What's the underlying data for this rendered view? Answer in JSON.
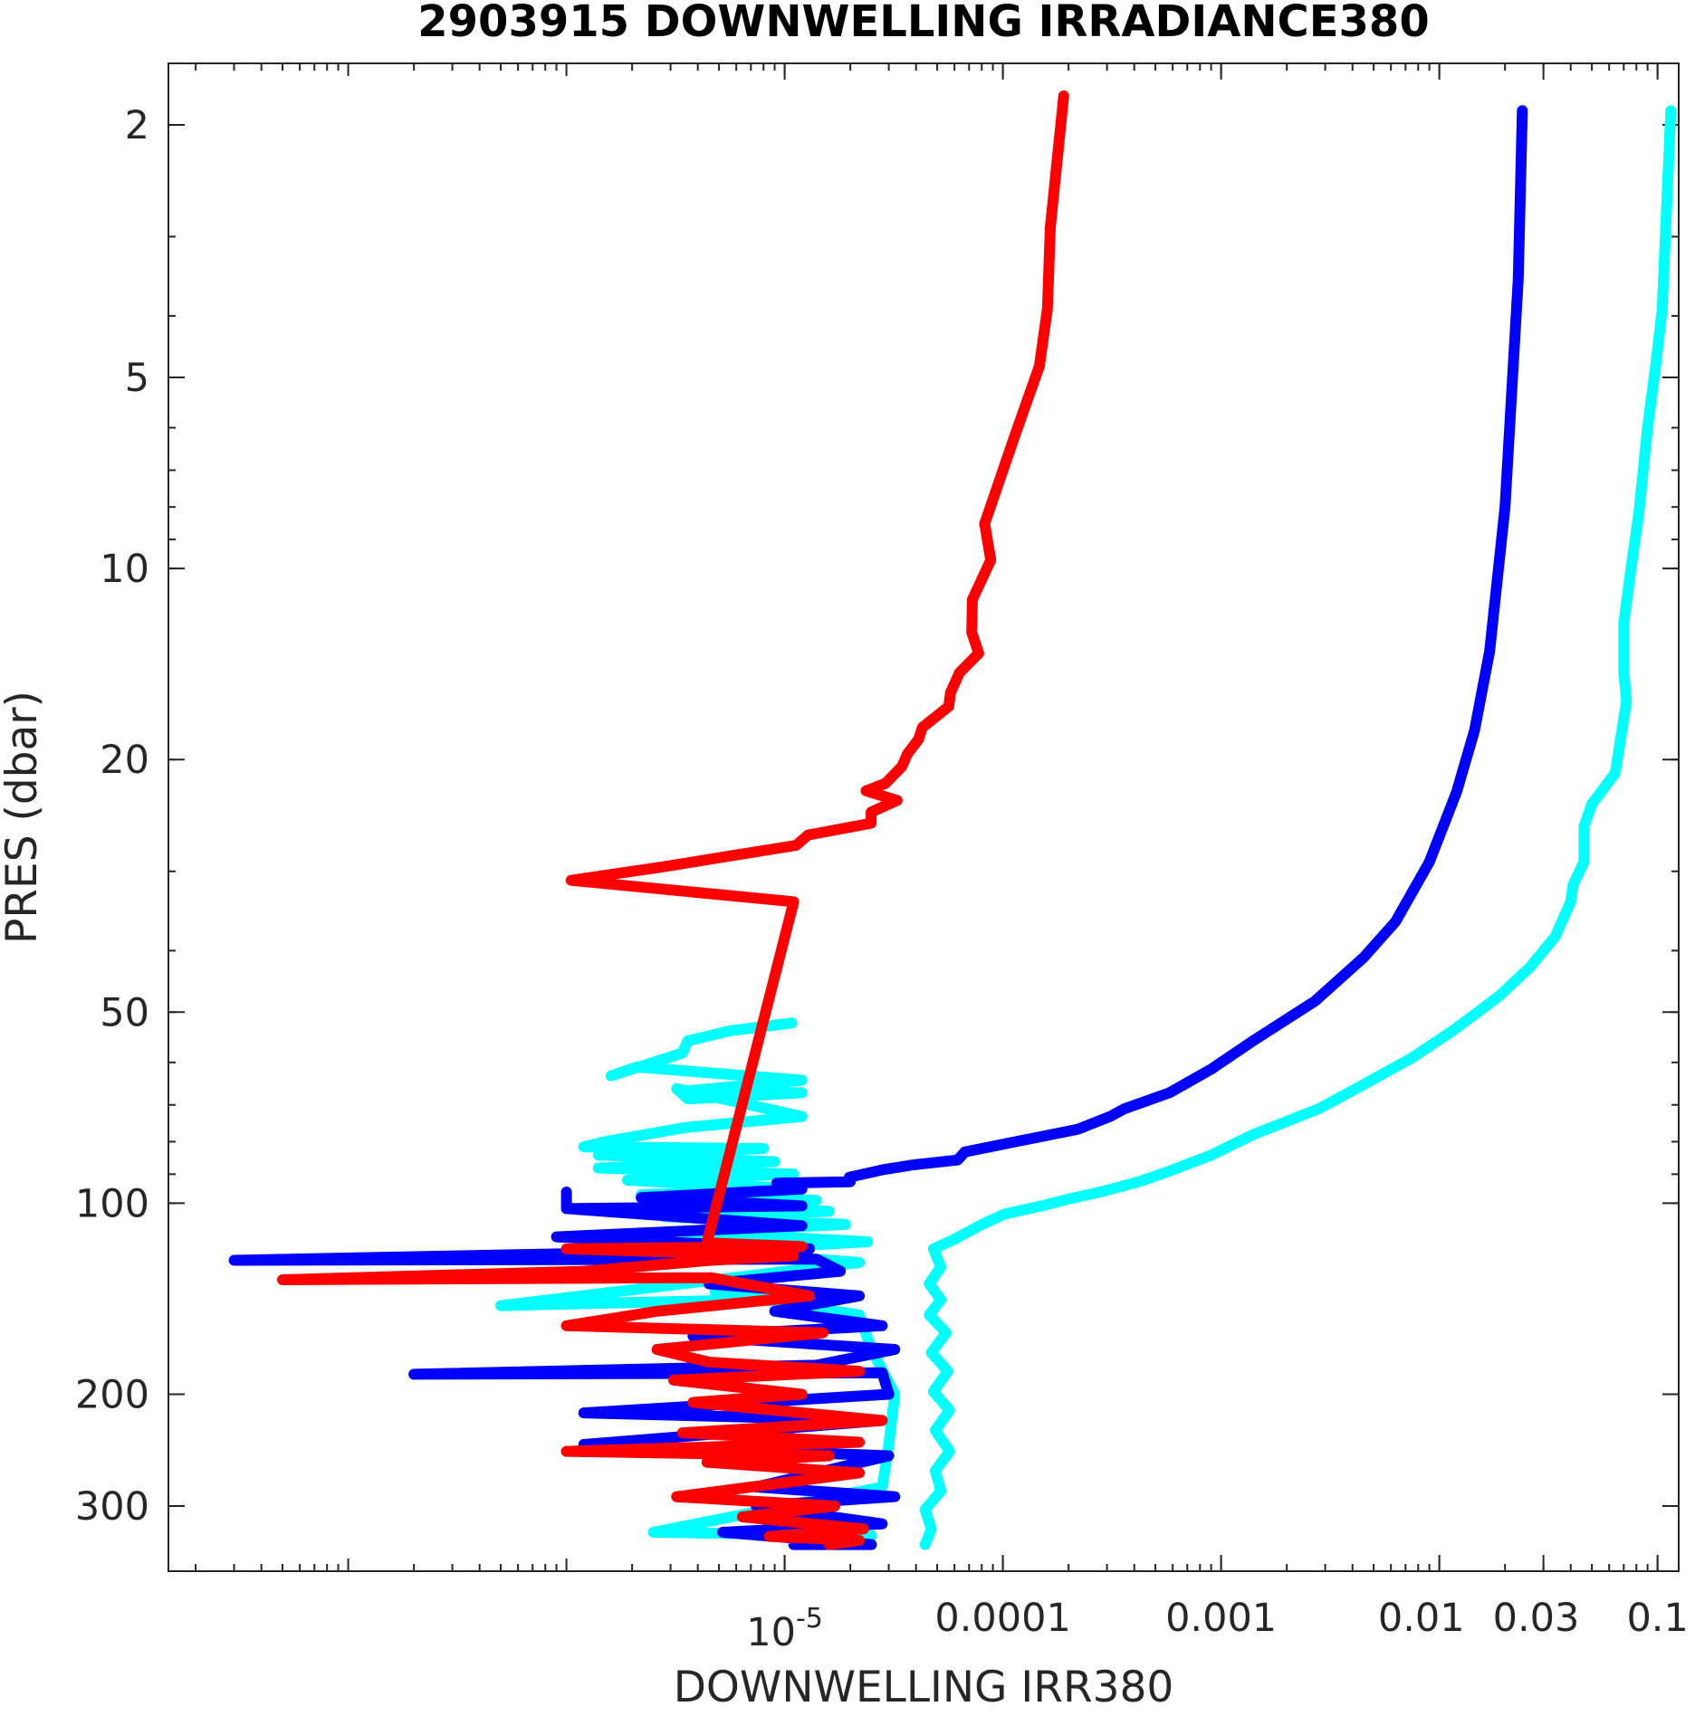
{
  "chart_data": {
    "type": "line",
    "title": "2903915  DOWNWELLING IRRADIANCE380",
    "xlabel": "DOWNWELLING IRR380",
    "ylabel": "PRES (dbar)",
    "x_scale": "log",
    "y_scale": "log",
    "y_reversed": true,
    "xlim": [
      1.5e-08,
      0.125
    ],
    "ylim": [
      1.6,
      380
    ],
    "x_ticks": [
      {
        "value": 1e-05,
        "label": "10",
        "exponent": "-5"
      },
      {
        "value": 0.0001,
        "label": "0.0001"
      },
      {
        "value": 0.001,
        "label": "0.001"
      },
      {
        "value": 0.01,
        "label": "0.01"
      },
      {
        "value": 0.03,
        "label": "0.03"
      },
      {
        "value": 0.1,
        "label": "0.1"
      }
    ],
    "y_ticks": [
      {
        "value": 2,
        "label": "2"
      },
      {
        "value": 5,
        "label": "5"
      },
      {
        "value": 10,
        "label": "10"
      },
      {
        "value": 20,
        "label": "20"
      },
      {
        "value": 50,
        "label": "50"
      },
      {
        "value": 100,
        "label": "100"
      },
      {
        "value": 200,
        "label": "200"
      },
      {
        "value": 300,
        "label": "300"
      }
    ],
    "grid": false,
    "legend": "none",
    "series": [
      {
        "color": "#00ffff",
        "points": [
          [
            0.115,
            1.9
          ],
          [
            0.105,
            3.9
          ],
          [
            0.098,
            4.8
          ],
          [
            0.09,
            6.0
          ],
          [
            0.082,
            8.2
          ],
          [
            0.075,
            10.2
          ],
          [
            0.07,
            12.2
          ],
          [
            0.07,
            14.5
          ],
          [
            0.072,
            16.2
          ],
          [
            0.064,
            21.0
          ],
          [
            0.05,
            23.5
          ],
          [
            0.046,
            25.5
          ],
          [
            0.046,
            29.0
          ],
          [
            0.041,
            31.5
          ],
          [
            0.04,
            33.5
          ],
          [
            0.034,
            38.0
          ],
          [
            0.026,
            42.5
          ],
          [
            0.019,
            47.0
          ],
          [
            0.015,
            50.0
          ],
          [
            0.0115,
            53.5
          ],
          [
            0.0075,
            59.0
          ],
          [
            0.0045,
            65.0
          ],
          [
            0.0028,
            71.0
          ],
          [
            0.0014,
            78.0
          ],
          [
            0.0009,
            84.0
          ],
          [
            0.00058,
            89.0
          ],
          [
            0.00042,
            92.5
          ],
          [
            0.00028,
            96.0
          ],
          [
            0.0002,
            98.5
          ],
          [
            0.00015,
            101.0
          ],
          [
            0.000102,
            104.0
          ],
          [
            8e-05,
            108.0
          ],
          [
            6e-05,
            114.0
          ],
          [
            4.8e-05,
            118.0
          ],
          [
            5.2e-05,
            126.0
          ],
          [
            4.6e-05,
            134.0
          ],
          [
            5.2e-05,
            142.0
          ],
          [
            4.6e-05,
            150.0
          ],
          [
            5.5e-05,
            160.0
          ],
          [
            4.7e-05,
            172.0
          ],
          [
            5.6e-05,
            184.0
          ],
          [
            4.8e-05,
            198.0
          ],
          [
            5.7e-05,
            212.0
          ],
          [
            4.9e-05,
            228.0
          ],
          [
            5.7e-05,
            246.0
          ],
          [
            4.9e-05,
            264.0
          ],
          [
            5.2e-05,
            284.0
          ],
          [
            4.4e-05,
            304.0
          ],
          [
            4.7e-05,
            326.0
          ],
          [
            4.4e-05,
            345.0
          ]
        ]
      },
      {
        "color": "#00ffff",
        "points": [
          [
            1.08e-05,
            52.0
          ],
          [
            5.6e-06,
            53.5
          ],
          [
            3.6e-06,
            55.5
          ],
          [
            3.4e-06,
            58.0
          ],
          [
            1.6e-06,
            63.0
          ],
          [
            2.1e-06,
            61.0
          ],
          [
            1.2e-05,
            64.0
          ],
          [
            3.6e-06,
            66.5
          ],
          [
            1.2e-05,
            67.0
          ],
          [
            3.6e-06,
            68.5
          ],
          [
            3.2e-06,
            66.0
          ],
          [
            1.2e-05,
            73.0
          ],
          [
            3.5e-06,
            76.0
          ],
          [
            1.5e-06,
            80.0
          ],
          [
            1.2e-06,
            81.5
          ],
          [
            8e-06,
            82.0
          ],
          [
            1.4e-06,
            84.0
          ],
          [
            9e-06,
            86.0
          ],
          [
            1.4e-06,
            88.0
          ],
          [
            1.1e-05,
            90.0
          ],
          [
            1.9e-06,
            92.0
          ],
          [
            1.2e-05,
            95.0
          ],
          [
            2.2e-06,
            97.0
          ],
          [
            1.4e-05,
            99.0
          ],
          [
            2.5e-06,
            101.0
          ],
          [
            1.6e-05,
            103.0
          ],
          [
            2.8e-06,
            105.0
          ],
          [
            1.9e-05,
            108.0
          ],
          [
            3.4e-06,
            111.0
          ],
          [
            2.4e-05,
            115.0
          ],
          [
            4.2e-06,
            119.0
          ],
          [
            2.2e-05,
            124.0
          ],
          [
            5e-07,
            145.0
          ],
          [
            1.6e-05,
            141.0
          ],
          [
            4.8e-06,
            138.0
          ],
          [
            2.2e-05,
            150.0
          ],
          [
            2.5e-05,
            170.0
          ],
          [
            3.2e-05,
            200.0
          ],
          [
            3e-05,
            240.0
          ],
          [
            2.8e-05,
            280.0
          ],
          [
            2.5e-06,
            330.0
          ],
          [
            2.5e-05,
            334.0
          ]
        ]
      },
      {
        "color": "#0000ff",
        "points": [
          [
            0.024,
            1.9
          ],
          [
            0.023,
            3.5
          ],
          [
            0.02,
            8.0
          ],
          [
            0.017,
            13.5
          ],
          [
            0.0145,
            18.0
          ],
          [
            0.012,
            22.5
          ],
          [
            0.009,
            29.0
          ],
          [
            0.0063,
            36.0
          ],
          [
            0.0045,
            41.0
          ],
          [
            0.0027,
            48.0
          ],
          [
            0.0014,
            55.5
          ],
          [
            0.0009,
            61.5
          ],
          [
            0.00058,
            67.0
          ],
          [
            0.00036,
            71.0
          ],
          [
            0.00031,
            73.0
          ],
          [
            0.00022,
            76.5
          ],
          [
            0.000105,
            80.5
          ],
          [
            6.7e-05,
            83.0
          ],
          [
            6.2e-05,
            85.5
          ],
          [
            3.9e-05,
            87.0
          ],
          [
            2.85e-05,
            88.5
          ],
          [
            1.98e-05,
            91.0
          ],
          [
            2e-05,
            92.5
          ],
          [
            9.2e-06,
            93.0
          ],
          [
            1.2e-05,
            95.0
          ],
          [
            2.2e-06,
            98.0
          ],
          [
            1.2e-05,
            101.0
          ],
          [
            1e-06,
            102.0
          ],
          [
            1e-06,
            96.0
          ],
          [
            1e-06,
            102.0
          ],
          [
            1.2e-05,
            108.5
          ],
          [
            9e-07,
            113.0
          ],
          [
            1.3e-05,
            118.0
          ],
          [
            3e-08,
            123.0
          ],
          [
            1.4e-05,
            122.5
          ],
          [
            1.8e-05,
            128.0
          ],
          [
            4.5e-06,
            134.0
          ],
          [
            2.2e-05,
            140.0
          ],
          [
            9e-06,
            148.0
          ],
          [
            2.8e-05,
            156.0
          ],
          [
            3.8e-06,
            162.0
          ],
          [
            3.2e-05,
            170.0
          ],
          [
            1.4e-05,
            180.0
          ],
          [
            2e-07,
            186.0
          ],
          [
            2.8e-05,
            185.0
          ],
          [
            3e-05,
            200.0
          ],
          [
            1.2e-06,
            214.0
          ],
          [
            2.8e-05,
            220.0
          ],
          [
            1.2e-06,
            240.0
          ],
          [
            3e-05,
            250.0
          ],
          [
            7.4e-06,
            280.0
          ],
          [
            3.2e-05,
            290.0
          ],
          [
            7.4e-06,
            300.0
          ],
          [
            2.8e-05,
            320.0
          ],
          [
            5.2e-06,
            330.0
          ],
          [
            2.5e-05,
            345.0
          ],
          [
            1.1e-05,
            345.0
          ]
        ]
      },
      {
        "color": "#ff0000",
        "points": [
          [
            0.00019,
            1.8
          ],
          [
            0.000165,
            2.9
          ],
          [
            0.00016,
            3.9
          ],
          [
            0.000147,
            4.8
          ],
          [
            0.000113,
            6.2
          ],
          [
            8.25e-05,
            8.5
          ],
          [
            8.8e-05,
            9.7
          ],
          [
            7.25e-05,
            11.2
          ],
          [
            7.2e-05,
            12.6
          ],
          [
            7.75e-05,
            13.6
          ],
          [
            6.32e-05,
            14.6
          ],
          [
            5.75e-05,
            15.7
          ],
          [
            5.65e-05,
            16.5
          ],
          [
            4.28e-05,
            17.8
          ],
          [
            4.1e-05,
            18.6
          ],
          [
            3.65e-05,
            19.6
          ],
          [
            3.45e-05,
            20.5
          ],
          [
            2.9e-05,
            21.8
          ],
          [
            2.36e-05,
            22.4
          ],
          [
            3.28e-05,
            23.2
          ],
          [
            2.49e-05,
            24.2
          ],
          [
            2.49e-05,
            25.2
          ],
          [
            1.28e-05,
            26.3
          ],
          [
            1.13e-05,
            27.3
          ],
          [
            5.2e-06,
            28.5
          ],
          [
            2.8e-06,
            29.5
          ],
          [
            1.05e-06,
            31.0
          ],
          [
            1.1e-05,
            33.5
          ],
          [
            4.4e-06,
            115.5
          ],
          [
            1.2e-05,
            117.0
          ],
          [
            1e-06,
            118.0
          ],
          [
            1.1e-05,
            121.0
          ],
          [
            4.6e-06,
            123.0
          ],
          [
            1.2e-06,
            128.0
          ],
          [
            5e-08,
            132.0
          ],
          [
            4.6e-06,
            131.0
          ],
          [
            1.3e-05,
            140.0
          ],
          [
            2.6e-06,
            148.0
          ],
          [
            1e-06,
            156.0
          ],
          [
            1.5e-05,
            160.0
          ],
          [
            2.6e-06,
            170.0
          ],
          [
            4.5e-06,
            178.0
          ],
          [
            2.2e-05,
            184.0
          ],
          [
            3.1e-06,
            190.0
          ],
          [
            1.2e-05,
            200.0
          ],
          [
            3.8e-06,
            206.0
          ],
          [
            2.8e-05,
            220.0
          ],
          [
            3.4e-06,
            230.0
          ],
          [
            2.2e-05,
            238.0
          ],
          [
            1e-06,
            246.0
          ],
          [
            1.6e-05,
            250.0
          ],
          [
            4.4e-06,
            256.0
          ],
          [
            2.2e-05,
            266.0
          ],
          [
            3.2e-06,
            290.0
          ],
          [
            1.7e-05,
            300.0
          ],
          [
            6.4e-06,
            312.0
          ],
          [
            2.3e-05,
            326.0
          ],
          [
            8.5e-06,
            335.0
          ],
          [
            2.2e-05,
            340.0
          ],
          [
            1.6e-05,
            345.0
          ]
        ]
      }
    ]
  }
}
